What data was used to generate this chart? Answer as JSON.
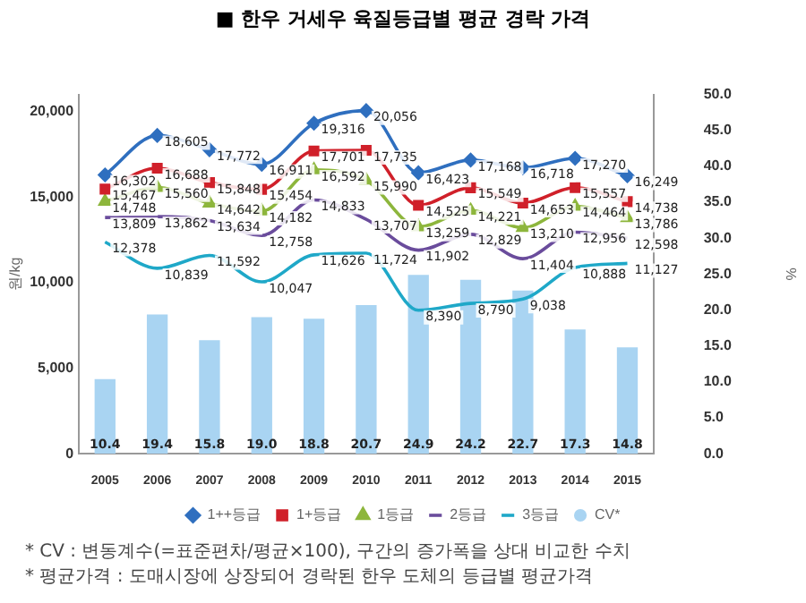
{
  "chart_data": {
    "type": "line",
    "title": "■ 한우 거세우 육질등급별 평균 경락 가격",
    "ylabel": "원/kg",
    "y2label": "%",
    "categories": [
      "2005",
      "2006",
      "2007",
      "2008",
      "2009",
      "2010",
      "2011",
      "2012",
      "2013",
      "2014",
      "2015"
    ],
    "series": [
      {
        "name": "CV*",
        "type": "bar",
        "axis": "y2",
        "color": "#a9d4f2",
        "values": [
          10.4,
          19.4,
          15.8,
          19.0,
          18.8,
          20.7,
          24.9,
          24.2,
          22.7,
          17.3,
          14.8
        ],
        "value_labels": [
          "10.4",
          "19.4",
          "15.8",
          "19.0",
          "18.8",
          "20.7",
          "24.9",
          "24.2",
          "22.7",
          "17.3",
          "14.8"
        ]
      },
      {
        "name": "1++등급",
        "color": "#2f6fbf",
        "marker": "diamond",
        "values": [
          16302,
          18605,
          17772,
          16911,
          19316,
          20056,
          16423,
          17168,
          16718,
          17270,
          16249
        ],
        "value_labels": [
          "16,302",
          "18,605",
          "17,772",
          "16,911",
          "19,316",
          "20,056",
          "16,423",
          "17,168",
          "16,718",
          "17,270",
          "16,249"
        ]
      },
      {
        "name": "1+등급",
        "color": "#d0202a",
        "marker": "square",
        "values": [
          15467,
          16688,
          15848,
          15454,
          17701,
          17735,
          14525,
          15549,
          14653,
          15557,
          14738
        ],
        "value_labels": [
          "15,467",
          "16,688",
          "15,848",
          "15,454",
          "17,701",
          "17,735",
          "14,525",
          "15,549",
          "14,653",
          "15,557",
          "14,738"
        ]
      },
      {
        "name": "1등급",
        "color": "#8db63c",
        "marker": "triangle",
        "values": [
          14748,
          15560,
          14642,
          14182,
          16592,
          15990,
          13259,
          14221,
          13210,
          14464,
          13786
        ],
        "value_labels": [
          "14,748",
          "15,560",
          "14,642",
          "14,182",
          "16,592",
          "15,990",
          "13,259",
          "14,221",
          "13,210",
          "14,464",
          "13,786"
        ]
      },
      {
        "name": "2등급",
        "color": "#6a4c9c",
        "marker": "none",
        "values": [
          13809,
          13862,
          13634,
          12758,
          14833,
          13707,
          11902,
          12829,
          11404,
          12956,
          12598
        ],
        "value_labels": [
          "13,809",
          "13,862",
          "13,634",
          "12,758",
          "14,833",
          "13,707",
          "11,902",
          "12,829",
          "11,404",
          "12,956",
          "12,598"
        ]
      },
      {
        "name": "3등급",
        "color": "#1fa8c8",
        "marker": "none",
        "values": [
          12378,
          10839,
          11592,
          10047,
          11626,
          11724,
          8390,
          8790,
          9038,
          10888,
          11127
        ],
        "value_labels": [
          "12,378",
          "10,839",
          "11,592",
          "10,047",
          "11,626",
          "11,724",
          "8,390",
          "8,790",
          "9,038",
          "10,888",
          "11,127"
        ]
      }
    ],
    "ylim": [
      0,
      21000
    ],
    "yticks": [
      {
        "value": 0,
        "label": "0"
      },
      {
        "value": 5000,
        "label": "5,000"
      },
      {
        "value": 10000,
        "label": "10,000"
      },
      {
        "value": 15000,
        "label": "15,000"
      },
      {
        "value": 20000,
        "label": "20,000"
      }
    ],
    "y2lim": [
      0,
      50
    ],
    "y2ticks": [
      {
        "value": 0,
        "label": "0.0"
      },
      {
        "value": 5,
        "label": "5.0"
      },
      {
        "value": 10,
        "label": "10.0"
      },
      {
        "value": 15,
        "label": "15.0"
      },
      {
        "value": 20,
        "label": "20.0"
      },
      {
        "value": 25,
        "label": "25.0"
      },
      {
        "value": 30,
        "label": "30.0"
      },
      {
        "value": 35,
        "label": "35.0"
      },
      {
        "value": 40,
        "label": "40.0"
      },
      {
        "value": 45,
        "label": "45.0"
      },
      {
        "value": 50,
        "label": "50.0"
      }
    ],
    "grid": false,
    "legend": "bottom",
    "annotations": [
      "* CV : 변동계수(=표준편차/평균×100), 구간의 증가폭을 상대 비교한 수치",
      "* 평균가격 : 도매시장에 상장되어 경락된 한우 도체의 등급별 평균가격"
    ]
  }
}
